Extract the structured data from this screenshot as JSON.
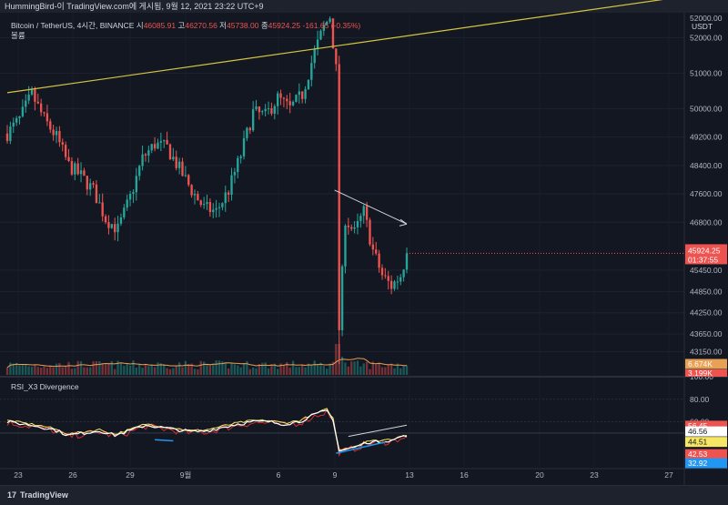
{
  "header": {
    "watermark": "HummingBird-이 TradingView.com에 게시됨, 9월 12, 2021 23:22 UTC+9"
  },
  "legend": {
    "symbol": "Bitcoin / TetherUS, 4시간, BINANCE",
    "open_label": "시",
    "open": "46085.91",
    "high_label": "고",
    "high": "46270.56",
    "low_label": "저",
    "low": "45738.00",
    "close_label": "종",
    "close": "45924.25",
    "change": "-161.65 (-0.35%)",
    "volume_label": "볼륨"
  },
  "rsi_title": "RSI_X3 Divergence",
  "quote_unit": "USDT",
  "price_badge": {
    "price": "45924.25",
    "countdown": "01:37:55"
  },
  "volume_badges": [
    "6.674K",
    "3.199K"
  ],
  "rsi_badges": [
    "56.45",
    "46.56",
    "44.51",
    "42.53",
    "32.92"
  ],
  "footer": {
    "logo_mark": "17",
    "brand": "TradingView"
  },
  "colors": {
    "up": "#26a69a",
    "down": "#ef5350",
    "trendline": "#d6c540",
    "rsi_main": "#ffffff",
    "rsi_fast": "#d32f2f",
    "rsi_slow": "#f5e663",
    "vol_ma": "#e8a055",
    "div_line": "#2196f3"
  },
  "chart_data": {
    "type": "candlestick",
    "price_axis_ticks": [
      52000,
      51000,
      50000,
      49200,
      48400,
      47600,
      46800,
      45450,
      44850,
      44250,
      43650,
      43150
    ],
    "price_axis_top_label": "52000.00",
    "price_range": [
      42500,
      52600
    ],
    "x_axis_ticks": [
      "23",
      "26",
      "29",
      "9월",
      "6",
      "9",
      "13",
      "16",
      "20",
      "23",
      "27"
    ],
    "rsi_axis_ticks": [
      100,
      80,
      60
    ],
    "rsi_range": [
      20,
      100
    ],
    "candle_count": 131,
    "price_path_anchors": [
      [
        0,
        49300
      ],
      [
        4,
        49700
      ],
      [
        8,
        50400
      ],
      [
        12,
        49700
      ],
      [
        16,
        49200
      ],
      [
        20,
        48400
      ],
      [
        24,
        48100
      ],
      [
        28,
        47700
      ],
      [
        32,
        46900
      ],
      [
        36,
        46600
      ],
      [
        40,
        47500
      ],
      [
        44,
        48600
      ],
      [
        48,
        49000
      ],
      [
        52,
        48900
      ],
      [
        56,
        48300
      ],
      [
        60,
        47700
      ],
      [
        64,
        47200
      ],
      [
        68,
        47100
      ],
      [
        72,
        47700
      ],
      [
        76,
        48700
      ],
      [
        80,
        49900
      ],
      [
        84,
        49800
      ],
      [
        88,
        50300
      ],
      [
        92,
        50000
      ],
      [
        96,
        50400
      ],
      [
        100,
        51600
      ],
      [
        103,
        52300
      ],
      [
        105,
        52600
      ],
      [
        107,
        51100
      ],
      [
        108,
        43800
      ],
      [
        110,
        46900
      ],
      [
        113,
        46500
      ],
      [
        116,
        47100
      ],
      [
        119,
        46000
      ],
      [
        122,
        45300
      ],
      [
        125,
        45000
      ],
      [
        128,
        45300
      ],
      [
        130,
        45924
      ]
    ],
    "volume_note": "spike at the crash candle",
    "trendline": {
      "start": [
        0,
        50450
      ],
      "end": [
        130,
        52050
      ]
    },
    "rsi_path_anchors": [
      [
        0,
        60
      ],
      [
        5,
        58
      ],
      [
        10,
        56
      ],
      [
        15,
        53
      ],
      [
        20,
        48
      ],
      [
        25,
        50
      ],
      [
        30,
        52
      ],
      [
        35,
        48
      ],
      [
        40,
        52
      ],
      [
        45,
        57
      ],
      [
        50,
        55
      ],
      [
        55,
        53
      ],
      [
        60,
        51
      ],
      [
        65,
        52
      ],
      [
        70,
        55
      ],
      [
        75,
        58
      ],
      [
        80,
        60
      ],
      [
        85,
        60
      ],
      [
        90,
        58
      ],
      [
        95,
        60
      ],
      [
        100,
        66
      ],
      [
        104,
        70
      ],
      [
        106,
        62
      ],
      [
        108,
        34
      ],
      [
        111,
        36
      ],
      [
        114,
        38
      ],
      [
        117,
        42
      ],
      [
        120,
        42
      ],
      [
        123,
        43
      ],
      [
        126,
        44
      ],
      [
        128,
        47
      ],
      [
        130,
        46.56
      ]
    ],
    "divergence_lines": {
      "price": {
        "start": [
          113,
          47500
        ],
        "end": [
          130,
          46750
        ]
      },
      "rsi_top": {
        "start": [
          111,
          47
        ],
        "end": [
          130,
          57
        ]
      },
      "rsi_bottom": {
        "start": [
          107,
          32
        ],
        "end": [
          123,
          42
        ]
      }
    }
  }
}
